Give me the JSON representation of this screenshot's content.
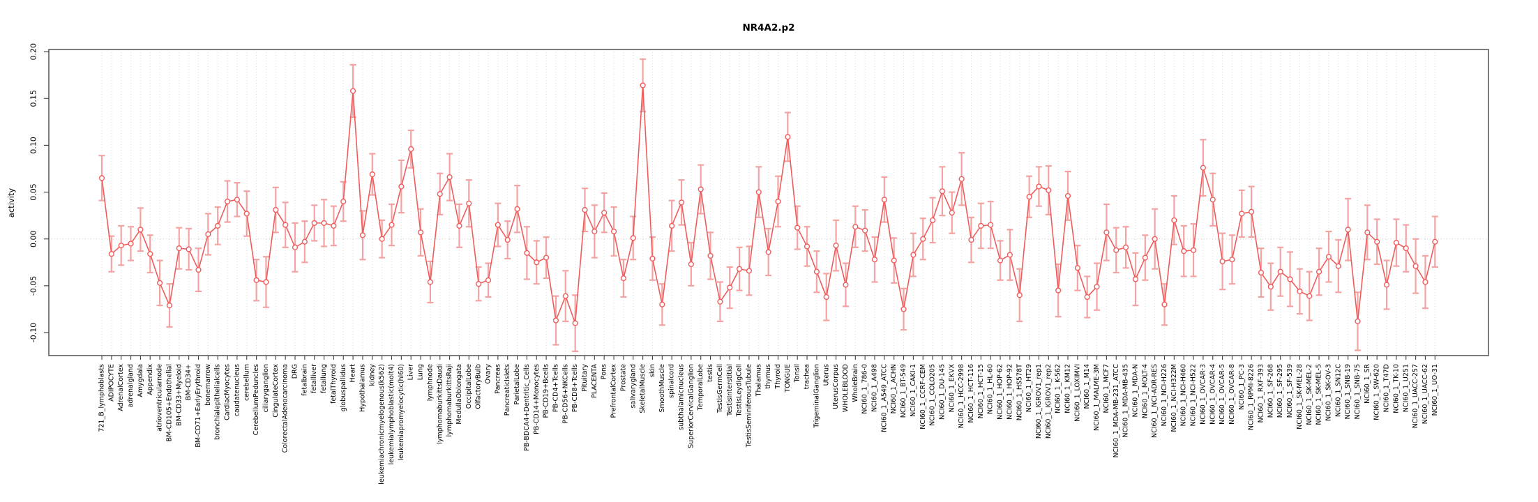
{
  "page": {
    "background": "#ffffff"
  },
  "chart_data": {
    "type": "line",
    "title": "NR4A2.p2",
    "xlabel": "",
    "ylabel": "activity",
    "ylim": [
      -0.125,
      0.202
    ],
    "yticks": [
      {
        "label": "0.20",
        "value": 0.2
      },
      {
        "label": "0.15",
        "value": 0.15
      },
      {
        "label": "0.10",
        "value": 0.1
      },
      {
        "label": "0.05",
        "value": 0.05
      },
      {
        "label": "0.00",
        "value": 0.0
      },
      {
        "label": "-0.05",
        "value": -0.05
      },
      {
        "label": "-0.10",
        "value": -0.1
      }
    ],
    "grid": "vertical-dotted-per-category-plus-dotted-zero-line",
    "legend": "none",
    "marker": "open-circle",
    "error_bars": true,
    "colors": {
      "line": "#ee5c5c",
      "marker": "#ee5c5c",
      "error_bar": "#f4a3a3",
      "grid": "#dadada",
      "zero_line": "#c9c9c9",
      "frame": "#6e6e6e",
      "tick": "#444444",
      "background": "#ffffff"
    },
    "categories": [
      "721_B_lymphoblasts",
      "ADIPOCYTE",
      "AdrenalCortex",
      "adrenalgland",
      "Amygdala",
      "Appendix",
      "atrioventricularnode",
      "BM-CD105+Endothelial",
      "BM-CD33+Myeloid",
      "BM-CD34+",
      "BM-CD71+EarlyErythroid",
      "bonemarrow",
      "bronchialepithelialcells",
      "CardiacMyocytes",
      "caudatenucleus",
      "cerebellum",
      "CerebellumPeduncles",
      "ciliaryganglion",
      "CingulateCortex",
      "ColorectalAdenocarcinoma",
      "DRG",
      "fetalbrain",
      "fetalliver",
      "fetallung",
      "fetalThyroid",
      "globuspallidus",
      "Heart",
      "Hypothalamus",
      "kidney",
      "leukemiachronicmyelogenous(k562)",
      "leukemialymphoblastic(molt4)",
      "leukemiapromyelocytic(hl60)",
      "Liver",
      "Lung",
      "lymphnode",
      "lymphomaburkittsDaudi",
      "lymphomaburkittsRaji",
      "MedullaOblongata",
      "OccipitalLobe",
      "OlfactoryBulb",
      "Ovary",
      "Pancreas",
      "PancreaticIslets",
      "ParietalLobe",
      "PB-BDCA4+Dentritic_Cells",
      "PB-CD14+Monocytes",
      "PB-CD19+Bcells",
      "PB-CD4+Tcells",
      "PB-CD56+NKCells",
      "PB-CD8+Tcells",
      "Pituitary",
      "PLACENTA",
      "Pons",
      "PrefrontalCortex",
      "Prostate",
      "salivarygland",
      "SkeletalMuscle",
      "skin",
      "SmoothMuscle",
      "spinalcord",
      "subthalamicnucleus",
      "SuperiorCervicalGanglion",
      "TemporalLobe",
      "testis",
      "TestisGermCell",
      "TestisInterstitial",
      "TestisLeydigCell",
      "TestisSeminiferousTubule",
      "Thalamus",
      "thymus",
      "Thyroid",
      "TONGUE",
      "Tonsil",
      "trachea",
      "TrigeminalGanglion",
      "Uterus",
      "UterusCorpus",
      "WHOLEBLOOD",
      "WholeBrain",
      "NCI60_1_786-0",
      "NCI60_1_A498",
      "NCI60_1_A549_ATCC",
      "NCI60_1_ACHN",
      "NCI60_1_BT-549",
      "NCI60_1_CAKI-1",
      "NCI60_1_CCRF-CEM",
      "NCI60_1_COLO205",
      "NCI60_1_DU-145",
      "NCI60_1_EKVX",
      "NCI60_1_HCC-2998",
      "NCI60_1_HCT-116",
      "NCI60_1_HCT-15",
      "NCI60_1_HL-60",
      "NCI60_1_HOP-62",
      "NCI60_1_HOP-92",
      "NCI60_1_HS578T",
      "NCI60_1_HT29",
      "NCI60_1_IGROV1_rep1",
      "NCI60_1_IGROV1_rep2",
      "NCI60_1_K-562",
      "NCI60_1_KM12",
      "NCI60_1_LOXIMVI",
      "NCI60_1_M14",
      "NCI60_1_MALME-3M",
      "NCI60_1_MCF7",
      "NCI60_1_MDA-MB-231_ATCC",
      "NCI60_1_MDA-MB-435",
      "NCI60_1_MDA-N",
      "NCI60_1_MOLT-4",
      "NCI60_1_NCI-ADR-RES",
      "NCI60_1_NCI-H226",
      "NCI60_1_NCI-H322M",
      "NCI60_1_NCI-H460",
      "NCI60_1_NCI-H522",
      "NCI60_1_OVCAR-3",
      "NCI60_1_OVCAR-4",
      "NCI60_1_OVCAR-5",
      "NCI60_1_OVCAR-8",
      "NCI60_1_PC-3",
      "NCI60_1_RPMI-8226",
      "NCI60_1_RXF-393",
      "NCI60_1_SF-268",
      "NCI60_1_SF-295",
      "NCI60_1_SF-539",
      "NCI60_1_SK-MEL-28",
      "NCI60_1_SK-MEL-2",
      "NCI60_1_SK-MEL-5",
      "NCI60_1_SK-OV-3",
      "NCI60_1_SN12C",
      "NCI60_1_SNB-19",
      "NCI60_1_SNB-75",
      "NCI60_1_SR",
      "NCI60_1_SW-620",
      "NCI60_1_T47D",
      "NCI60_1_TK-10",
      "NCI60_1_U251",
      "NCI60_1_UACC-257",
      "NCI60_1_UACC-62",
      "NCI60_1_UO-31"
    ],
    "values": [
      0.065,
      -0.016,
      -0.007,
      -0.005,
      0.01,
      -0.016,
      -0.047,
      -0.071,
      -0.01,
      -0.011,
      -0.033,
      0.005,
      0.014,
      0.04,
      0.042,
      0.027,
      -0.044,
      -0.046,
      0.031,
      0.015,
      -0.009,
      -0.003,
      0.017,
      0.017,
      0.014,
      0.04,
      0.158,
      0.004,
      0.069,
      0.0,
      0.015,
      0.056,
      0.096,
      0.007,
      -0.046,
      0.048,
      0.066,
      0.014,
      0.038,
      -0.048,
      -0.044,
      0.015,
      -0.001,
      0.032,
      -0.015,
      -0.025,
      -0.02,
      -0.087,
      -0.061,
      -0.09,
      0.031,
      0.008,
      0.028,
      0.008,
      -0.042,
      0.001,
      0.164,
      -0.021,
      -0.07,
      0.014,
      0.039,
      -0.027,
      0.053,
      -0.018,
      -0.067,
      -0.052,
      -0.032,
      -0.034,
      0.05,
      -0.014,
      0.04,
      0.109,
      0.012,
      -0.008,
      -0.035,
      -0.062,
      -0.007,
      -0.049,
      0.013,
      0.009,
      -0.022,
      0.042,
      -0.023,
      -0.075,
      -0.017,
      0.0,
      0.02,
      0.051,
      0.028,
      0.064,
      -0.001,
      0.014,
      0.015,
      -0.023,
      -0.017,
      -0.06,
      0.045,
      0.056,
      0.052,
      -0.055,
      0.046,
      -0.031,
      -0.062,
      -0.051,
      0.007,
      -0.012,
      -0.009,
      -0.043,
      -0.02,
      0.0,
      -0.07,
      0.02,
      -0.013,
      -0.012,
      0.076,
      0.042,
      -0.024,
      -0.022,
      0.027,
      0.029,
      -0.036,
      -0.051,
      -0.035,
      -0.043,
      -0.056,
      -0.061,
      -0.035,
      -0.019,
      -0.029,
      0.01,
      -0.088,
      0.007,
      -0.003,
      -0.049,
      -0.004,
      -0.01,
      -0.029,
      -0.046,
      -0.003
    ],
    "errors": [
      0.024,
      0.019,
      0.021,
      0.018,
      0.023,
      0.02,
      0.024,
      0.023,
      0.022,
      0.022,
      0.023,
      0.022,
      0.02,
      0.022,
      0.018,
      0.024,
      0.022,
      0.027,
      0.024,
      0.024,
      0.026,
      0.022,
      0.019,
      0.025,
      0.021,
      0.021,
      0.028,
      0.026,
      0.022,
      0.02,
      0.022,
      0.028,
      0.02,
      0.025,
      0.022,
      0.022,
      0.025,
      0.023,
      0.025,
      0.018,
      0.018,
      0.023,
      0.02,
      0.025,
      0.028,
      0.023,
      0.022,
      0.026,
      0.027,
      0.03,
      0.023,
      0.028,
      0.021,
      0.026,
      0.02,
      0.023,
      0.028,
      0.023,
      0.022,
      0.027,
      0.024,
      0.023,
      0.026,
      0.025,
      0.021,
      0.022,
      0.023,
      0.026,
      0.027,
      0.025,
      0.027,
      0.026,
      0.023,
      0.021,
      0.022,
      0.025,
      0.027,
      0.023,
      0.022,
      0.022,
      0.024,
      0.024,
      0.024,
      0.022,
      0.023,
      0.022,
      0.024,
      0.026,
      0.022,
      0.028,
      0.024,
      0.024,
      0.025,
      0.021,
      0.027,
      0.028,
      0.022,
      0.021,
      0.026,
      0.028,
      0.026,
      0.024,
      0.022,
      0.025,
      0.03,
      0.024,
      0.022,
      0.028,
      0.024,
      0.032,
      0.022,
      0.026,
      0.027,
      0.028,
      0.03,
      0.028,
      0.03,
      0.026,
      0.025,
      0.027,
      0.026,
      0.025,
      0.026,
      0.029,
      0.024,
      0.026,
      0.025,
      0.027,
      0.028,
      0.033,
      0.031,
      0.029,
      0.024,
      0.026,
      0.025,
      0.025,
      0.029,
      0.028,
      0.027
    ]
  }
}
